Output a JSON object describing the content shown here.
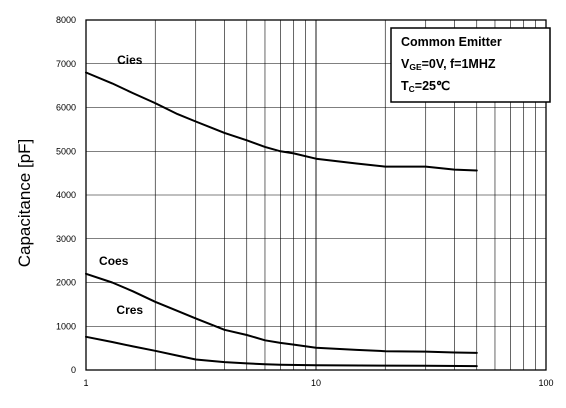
{
  "chart_data": {
    "type": "line",
    "title": "",
    "xlabel": "",
    "ylabel": "Capacitance [pF]",
    "x_scale": "log",
    "xlim": [
      1,
      100
    ],
    "ylim": [
      0,
      8000
    ],
    "x_ticks": [
      "1",
      "10",
      "100"
    ],
    "y_ticks": [
      "0",
      "1000",
      "2000",
      "3000",
      "4000",
      "5000",
      "6000",
      "7000",
      "8000"
    ],
    "grid": true,
    "legend_box": {
      "line1": "Common Emitter",
      "line2_prefix": "V",
      "line2_sub": "GE",
      "line2_suffix": "=0V, f=1MHZ",
      "line3_prefix": "T",
      "line3_sub": "C",
      "line3_suffix": "=25℃",
      "placement": "top-right"
    },
    "series": [
      {
        "name": "Cies",
        "x": [
          1,
          1.3,
          1.6,
          2,
          2.5,
          3,
          4,
          5,
          6,
          7,
          8,
          10,
          15,
          20,
          30,
          40,
          50
        ],
        "y": [
          6800,
          6550,
          6330,
          6100,
          5850,
          5680,
          5420,
          5250,
          5100,
          5000,
          4950,
          4830,
          4720,
          4650,
          4650,
          4580,
          4560
        ]
      },
      {
        "name": "Coes",
        "x": [
          1,
          1.3,
          1.6,
          2,
          2.5,
          3,
          4,
          5,
          6,
          7,
          8,
          10,
          15,
          20,
          30,
          40,
          50
        ],
        "y": [
          2200,
          2000,
          1800,
          1560,
          1350,
          1180,
          920,
          800,
          680,
          620,
          580,
          510,
          460,
          430,
          420,
          400,
          390
        ]
      },
      {
        "name": "Cres",
        "x": [
          1,
          1.3,
          1.6,
          2,
          2.5,
          3,
          4,
          5,
          6,
          7,
          10,
          20,
          30,
          50
        ],
        "y": [
          760,
          640,
          540,
          440,
          330,
          240,
          180,
          150,
          130,
          120,
          110,
          100,
          95,
          90
        ]
      }
    ]
  }
}
